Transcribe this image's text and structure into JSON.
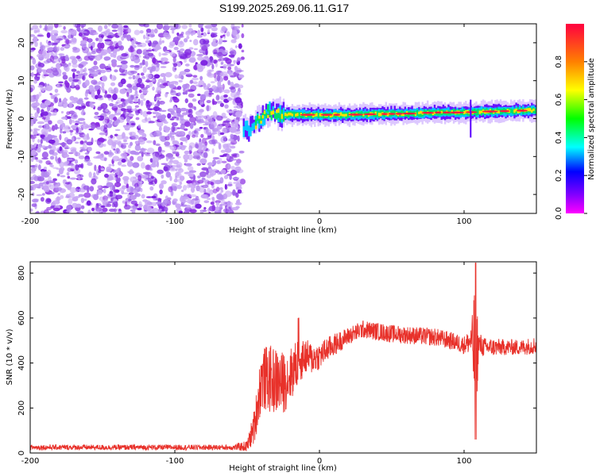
{
  "title": "S199.2025.269.06.11.G17",
  "colors": {
    "noise": "#8a2be2",
    "noise_light": "#c8a6f5",
    "snr_line": "#e8312a"
  },
  "chart_data": [
    {
      "type": "heatmap",
      "name": "spectrogram",
      "xlabel": "Height of straight line (km)",
      "ylabel": "Frequency (Hz)",
      "xlim": [
        -200,
        150
      ],
      "ylim": [
        -25,
        25
      ],
      "xticks": [
        -200,
        -100,
        0,
        100
      ],
      "yticks": [
        -20,
        -10,
        0,
        10,
        20
      ],
      "noise_region": {
        "x_from": -200,
        "x_to": -53,
        "freq_range": [
          -25,
          25
        ]
      },
      "signal_ridge": {
        "x": [
          -53,
          -50,
          -47,
          -44,
          -41,
          -38,
          -35,
          -30,
          -25,
          -20,
          -15,
          -10,
          0,
          20,
          40,
          60,
          80,
          100,
          110,
          130,
          150
        ],
        "freq": [
          -2.5,
          -3,
          -2,
          -1,
          0,
          1,
          2,
          1.5,
          1.2,
          1,
          1,
          1,
          1,
          1,
          1.2,
          1.3,
          1.6,
          1.6,
          1.8,
          2,
          2.2
        ]
      },
      "colorbar": {
        "label": "Normalized spectral amplitude",
        "range": [
          0,
          1
        ],
        "ticks": [
          "0.0",
          "0.2",
          "0.4",
          "0.6",
          "0.8"
        ]
      }
    },
    {
      "type": "line",
      "name": "snr",
      "xlabel": "Height of straight line (km)",
      "ylabel": "SNR (10 * v/v)",
      "xlim": [
        -200,
        150
      ],
      "ylim": [
        0,
        850
      ],
      "xticks": [
        -200,
        -100,
        0,
        100
      ],
      "yticks": [
        0,
        200,
        400,
        600,
        800
      ],
      "series": [
        {
          "name": "SNR",
          "x": [
            -200,
            -150,
            -100,
            -60,
            -50,
            -45,
            -42,
            -40,
            -35,
            -30,
            -25,
            -20,
            -15,
            -10,
            -5,
            0,
            5,
            10,
            20,
            30,
            40,
            50,
            60,
            70,
            80,
            90,
            100,
            105,
            108,
            110,
            115,
            120,
            130,
            140,
            150
          ],
          "y": [
            25,
            25,
            25,
            25,
            30,
            120,
            250,
            330,
            330,
            320,
            310,
            350,
            400,
            430,
            420,
            430,
            460,
            480,
            520,
            550,
            540,
            530,
            525,
            520,
            515,
            500,
            480,
            500,
            440,
            480,
            470,
            470,
            470,
            470,
            480
          ],
          "spread": [
            12,
            12,
            12,
            12,
            25,
            80,
            120,
            140,
            150,
            150,
            140,
            120,
            110,
            80,
            70,
            60,
            55,
            50,
            40,
            40,
            40,
            40,
            40,
            40,
            40,
            40,
            40,
            60,
            380,
            60,
            40,
            40,
            35,
            35,
            40
          ]
        }
      ],
      "annotations": [
        {
          "x": -13,
          "y": 600,
          "text": ""
        },
        {
          "x": 108,
          "y": 840,
          "text": ""
        },
        {
          "x": 108,
          "y": 60,
          "text": ""
        }
      ]
    }
  ]
}
